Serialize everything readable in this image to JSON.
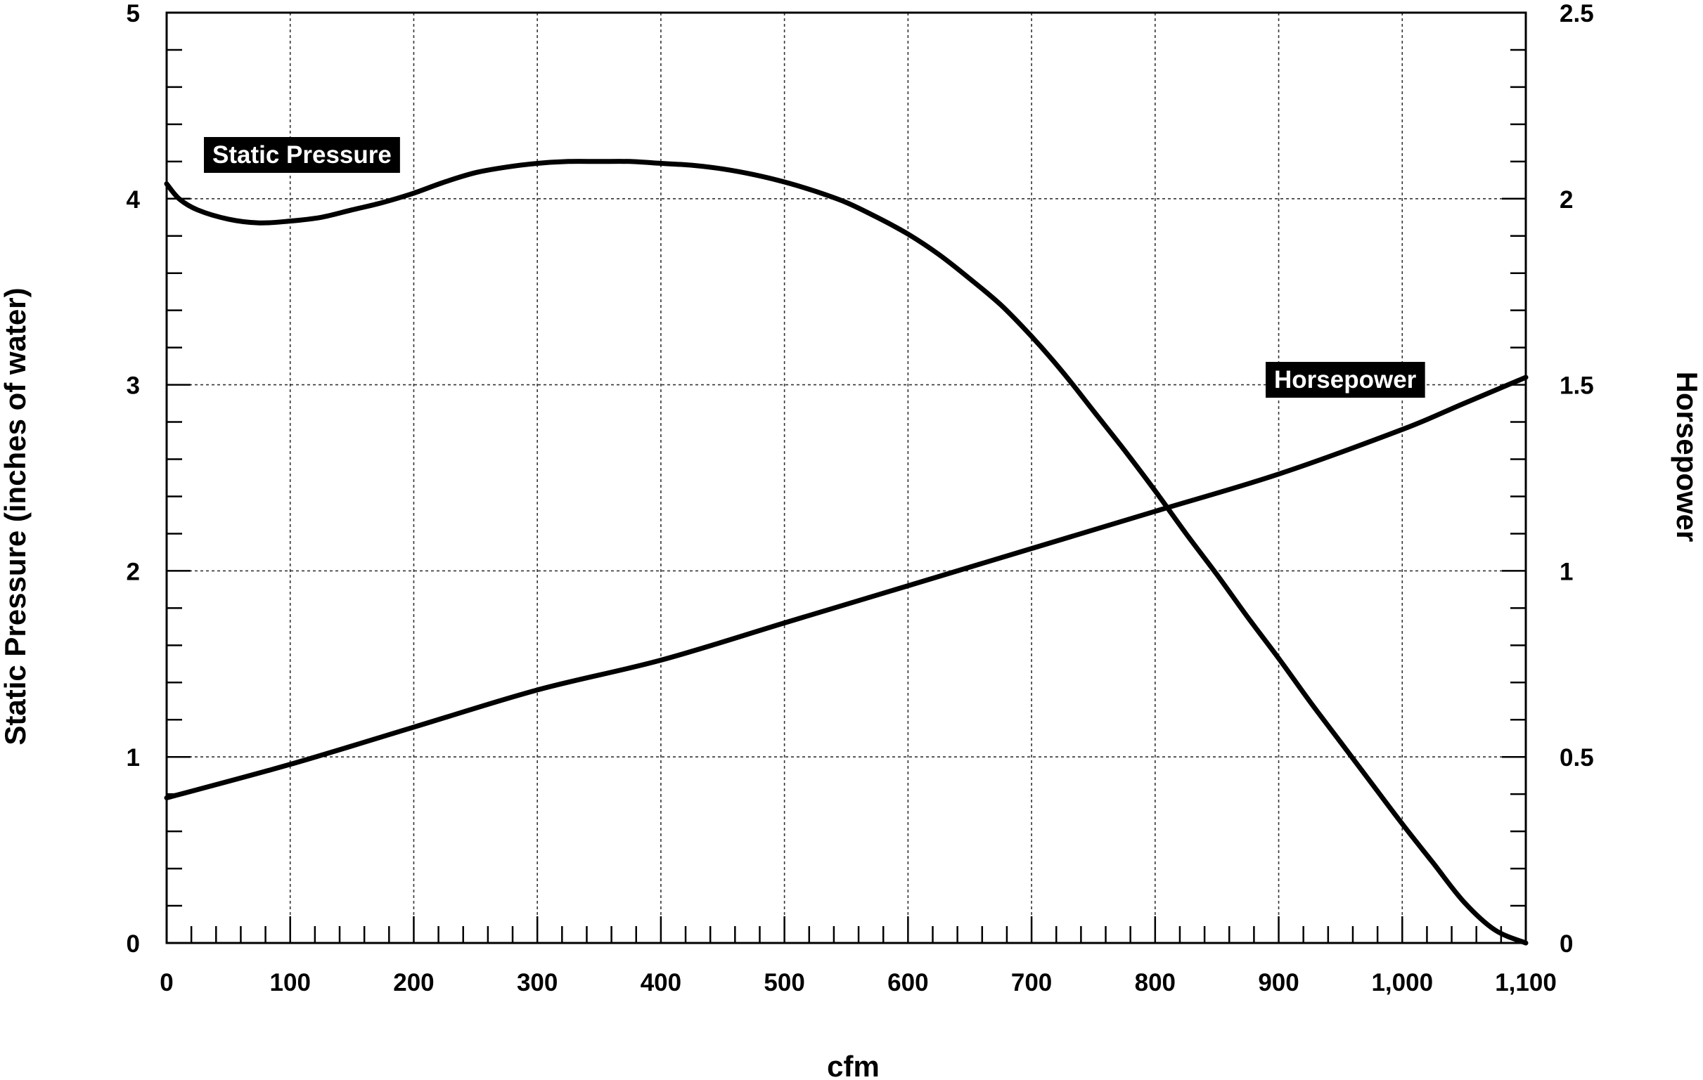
{
  "chart_data": {
    "type": "line",
    "xlabel": "cfm",
    "ylabel": "Static Pressure (inches of water)",
    "y2label": "Horsepower",
    "xlim": [
      0,
      1100
    ],
    "ylim": [
      0,
      5
    ],
    "y2lim": [
      0,
      2.5
    ],
    "grid": true,
    "x_ticks": [
      0,
      100,
      200,
      300,
      400,
      500,
      600,
      700,
      800,
      900,
      1000,
      1100
    ],
    "x_tick_labels": [
      "0",
      "100",
      "200",
      "300",
      "400",
      "500",
      "600",
      "700",
      "800",
      "900",
      "1,000",
      "1,100"
    ],
    "y_ticks": [
      0,
      1,
      2,
      3,
      4,
      5
    ],
    "y_tick_labels": [
      "0",
      "1",
      "2",
      "3",
      "4",
      "5"
    ],
    "y2_ticks": [
      0,
      0.5,
      1,
      1.5,
      2,
      2.5
    ],
    "y2_tick_labels": [
      "0",
      "0.5",
      "1",
      "1.5",
      "2",
      "2.5"
    ],
    "series": [
      {
        "name": "Static Pressure",
        "axis": "left",
        "x": [
          0,
          10,
          25,
          50,
          75,
          100,
          125,
          150,
          175,
          200,
          225,
          250,
          275,
          300,
          325,
          350,
          375,
          400,
          425,
          450,
          475,
          500,
          525,
          550,
          575,
          600,
          625,
          650,
          675,
          700,
          725,
          750,
          775,
          800,
          825,
          850,
          875,
          900,
          925,
          950,
          975,
          1000,
          1025,
          1050,
          1075,
          1100
        ],
        "y": [
          4.08,
          4.0,
          3.94,
          3.89,
          3.87,
          3.88,
          3.9,
          3.94,
          3.98,
          4.03,
          4.09,
          4.14,
          4.17,
          4.19,
          4.2,
          4.2,
          4.2,
          4.19,
          4.18,
          4.16,
          4.13,
          4.09,
          4.04,
          3.98,
          3.9,
          3.81,
          3.7,
          3.57,
          3.43,
          3.26,
          3.07,
          2.86,
          2.65,
          2.43,
          2.2,
          1.98,
          1.75,
          1.53,
          1.3,
          1.08,
          0.86,
          0.64,
          0.43,
          0.22,
          0.07,
          0.0
        ]
      },
      {
        "name": "Horsepower",
        "axis": "right",
        "x": [
          0,
          100,
          200,
          300,
          400,
          500,
          600,
          700,
          800,
          900,
          1000,
          1050,
          1100
        ],
        "y": [
          0.39,
          0.48,
          0.58,
          0.68,
          0.76,
          0.86,
          0.96,
          1.06,
          1.16,
          1.26,
          1.38,
          1.45,
          1.52
        ]
      }
    ]
  }
}
